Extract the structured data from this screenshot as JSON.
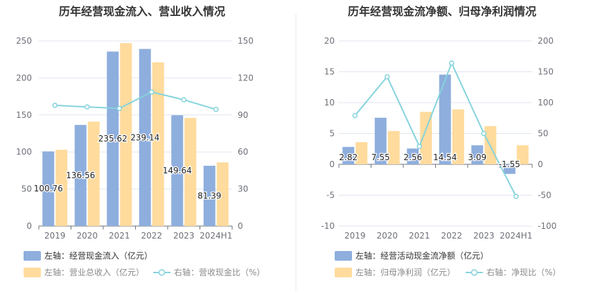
{
  "colors": {
    "bar_primary": "#8eaedd",
    "bar_secondary": "#ffdb9d",
    "line": "#85d3dd",
    "axis_text": "#6e7079",
    "grid": "#e0e6f1",
    "title": "#333333",
    "label": "#222222",
    "divider": "#e8e8e8"
  },
  "chart_data": [
    {
      "type": "bar",
      "title": "历年经营现金流入、营业收入情况",
      "categories": [
        "2019",
        "2020",
        "2021",
        "2022",
        "2023",
        "2024H1"
      ],
      "left_axis": {
        "ticks": [
          "0",
          "50",
          "100",
          "150",
          "200",
          "250"
        ],
        "min": 0,
        "max": 250
      },
      "right_axis": {
        "ticks": [
          "0",
          "30",
          "60",
          "90",
          "120",
          "150"
        ],
        "min": 0,
        "max": 150
      },
      "series": [
        {
          "name": "左轴：经营现金流入（亿元）",
          "axis": "left",
          "kind": "bar",
          "color": "#8eaedd",
          "values": [
            100.76,
            136.56,
            235.62,
            239.14,
            149.64,
            81.39
          ],
          "labels": [
            "100.76",
            "136.56",
            "235.62",
            "239.14",
            "149.64",
            "81.39"
          ]
        },
        {
          "name": "左轴：营业总收入（亿元）",
          "axis": "left",
          "kind": "bar",
          "color": "#ffdb9d",
          "values": [
            103,
            141,
            247,
            221,
            146,
            86
          ]
        },
        {
          "name": "右轴：营收现金比（%）",
          "axis": "right",
          "kind": "line",
          "color": "#85d3dd",
          "values": [
            97.8,
            96.5,
            95.3,
            108.6,
            102.3,
            94.5
          ]
        }
      ],
      "legend": [
        {
          "label": "左轴：经营现金流入（亿元）",
          "type": "bar",
          "color": "#8eaedd"
        },
        {
          "label": "左轴：营业总收入（亿元）",
          "type": "bar",
          "color": "#ffdb9d"
        },
        {
          "label": "右轴：营收现金比（%）",
          "type": "line",
          "color": "#85d3dd"
        }
      ]
    },
    {
      "type": "bar",
      "title": "历年经营现金流净额、归母净利润情况",
      "categories": [
        "2019",
        "2020",
        "2021",
        "2022",
        "2023",
        "2024H1"
      ],
      "left_axis": {
        "ticks": [
          "-10",
          "-5",
          "0",
          "5",
          "10",
          "15",
          "20"
        ],
        "min": -10,
        "max": 20
      },
      "right_axis": {
        "ticks": [
          "-100",
          "-50",
          "0",
          "50",
          "100",
          "150",
          "200"
        ],
        "min": -100,
        "max": 200
      },
      "series": [
        {
          "name": "左轴：经营活动现金流净额（亿元）",
          "axis": "left",
          "kind": "bar",
          "color": "#8eaedd",
          "values": [
            2.82,
            7.55,
            2.56,
            14.54,
            3.09,
            -1.55
          ],
          "labels": [
            "2.82",
            "7.55",
            "2.56",
            "14.54",
            "3.09",
            "-1.55"
          ]
        },
        {
          "name": "左轴：归母净利润（亿元）",
          "axis": "left",
          "kind": "bar",
          "color": "#ffdb9d",
          "values": [
            3.6,
            5.4,
            8.5,
            8.9,
            6.2,
            3.1
          ]
        },
        {
          "name": "右轴：净现比（%）",
          "axis": "right",
          "kind": "line",
          "color": "#85d3dd",
          "values": [
            79,
            142,
            29,
            164,
            50,
            -52
          ]
        }
      ],
      "legend": [
        {
          "label": "左轴：经营活动现金流净额（亿元）",
          "type": "bar",
          "color": "#8eaedd"
        },
        {
          "label": "左轴：归母净利润（亿元）",
          "type": "bar",
          "color": "#ffdb9d"
        },
        {
          "label": "右轴：净现比（%）",
          "type": "line",
          "color": "#85d3dd"
        }
      ]
    }
  ]
}
